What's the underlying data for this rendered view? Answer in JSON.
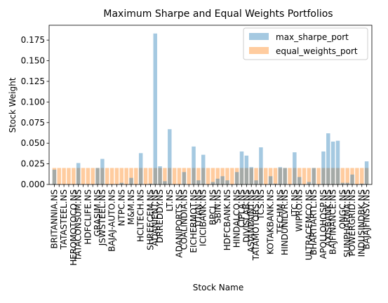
{
  "chart_data": {
    "type": "bar",
    "title": "Maximum Sharpe and Equal Weights Portfolios",
    "xlabel": "Stock Name",
    "ylabel": "Stock Weight",
    "ylim": [
      0,
      0.193
    ],
    "yticks": [
      0.0,
      0.025,
      0.05,
      0.075,
      0.1,
      0.125,
      0.15,
      0.175
    ],
    "ytick_labels": [
      "0.000",
      "0.025",
      "0.050",
      "0.075",
      "0.100",
      "0.125",
      "0.150",
      "0.175"
    ],
    "legend_position": "top-right",
    "categories": [
      "BRITANNIA.NS",
      "",
      "TATASTEEL.NS",
      "",
      "HEROMOTOCO.NS",
      "TATACONSUM.NS",
      "",
      "HDFCLIFE.NS",
      "",
      "GRASIM.NS",
      "JSWSTEEL.NS",
      "",
      "BAJAJ-AUTO.NS",
      "",
      "NTPC.NS",
      "",
      "M&M.NS",
      "",
      "HCLTECH.NS",
      "",
      "SHREECEM.NS",
      "ADANIENT.NS",
      "DRREDDY.NS",
      "",
      "LT.NS",
      "",
      "ADANIPORTS.NS",
      "COALINDIA.NS",
      "",
      "EICHERMOT.NS",
      "TITAN.NS",
      "ICICIBANK.NS",
      "",
      "BPCL.NS",
      "SBIN.NS",
      "",
      "HDFCBANK.NS",
      "",
      "HINDALCO.NS",
      "CIPLA.NS",
      "DIVISLAB.NS",
      "ASIANPAINT.NS",
      "TATAMOTORS.NS",
      "TCS.NS",
      "",
      "KOTAKBANK.NS",
      "",
      "TECHM.NS",
      "HINDUNILVR.NS",
      "",
      "ITC.NS",
      "WIPRO.NS",
      "",
      "ULTRACEMCO.NS",
      "BHARTIARTL.NS",
      "",
      "APOLLOHOSP.NS",
      "AXISBANK.NS",
      "BAJFINANCE.NS",
      "",
      "ONGC.NS",
      "SUNPHARMA.NS",
      "POWERGRID.NS",
      "",
      "INDUSINDBK.NS",
      "BAJAJFINSV.NS"
    ],
    "series": [
      {
        "name": "max_sharpe_port",
        "color": "#1f77b4",
        "alpha": 0.4,
        "values": [
          0.018,
          0,
          0,
          0,
          0,
          0.026,
          0,
          0,
          0,
          0.02,
          0.031,
          0,
          0,
          0,
          0.002,
          0,
          0.008,
          0,
          0.038,
          0,
          0.001,
          0.183,
          0.022,
          0.004,
          0.067,
          0,
          0,
          0.015,
          0,
          0.046,
          0.005,
          0.036,
          0,
          0.003,
          0.007,
          0.01,
          0.005,
          0,
          0.015,
          0.04,
          0.035,
          0.021,
          0.005,
          0.045,
          0,
          0.01,
          0.001,
          0.021,
          0.02,
          0,
          0.039,
          0.009,
          0,
          0.003,
          0.02,
          0,
          0.04,
          0.062,
          0.052,
          0.053,
          0.002,
          0.002,
          0.012,
          0,
          0.001,
          0.028
        ]
      },
      {
        "name": "equal_weights_port",
        "color": "#ff7f0e",
        "alpha": 0.4,
        "values": [
          0.02,
          0.02,
          0.02,
          0.02,
          0.02,
          0.02,
          0.02,
          0.02,
          0.02,
          0.02,
          0.02,
          0.02,
          0.02,
          0.02,
          0.02,
          0.02,
          0.02,
          0.02,
          0.02,
          0.02,
          0.02,
          0.02,
          0.02,
          0.02,
          0.02,
          0.02,
          0.02,
          0.02,
          0.02,
          0.02,
          0.02,
          0.02,
          0.02,
          0.02,
          0.02,
          0.02,
          0.02,
          0.02,
          0.02,
          0.02,
          0.02,
          0.02,
          0.02,
          0.02,
          0.02,
          0.02,
          0.02,
          0.02,
          0.02,
          0.02,
          0.02,
          0.02,
          0.02,
          0.02,
          0.02,
          0.02,
          0.02,
          0.02,
          0.02,
          0.02,
          0.02,
          0.02,
          0.02,
          0.02,
          0.02,
          0.02
        ]
      }
    ]
  }
}
